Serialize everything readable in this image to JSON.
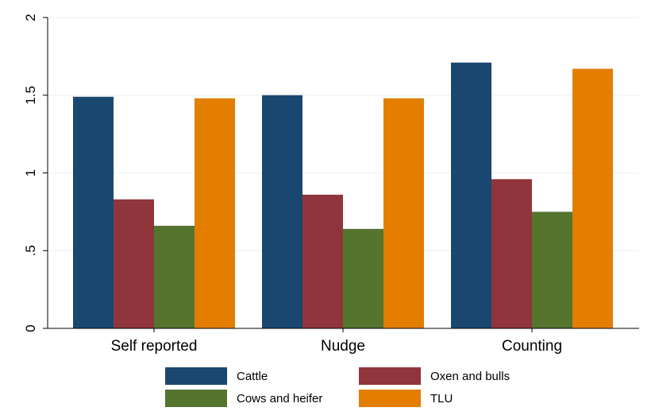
{
  "chart_data": {
    "type": "bar",
    "title": "",
    "xlabel": "",
    "ylabel": "",
    "categories": [
      "Self reported",
      "Nudge",
      "Counting"
    ],
    "series": [
      {
        "name": "Cattle",
        "color": "#1a476f",
        "values": [
          1.49,
          1.5,
          1.71
        ]
      },
      {
        "name": "Oxen and bulls",
        "color": "#90353b",
        "values": [
          0.83,
          0.86,
          0.96
        ]
      },
      {
        "name": "Cows and heifer",
        "color": "#55752f",
        "values": [
          0.66,
          0.64,
          0.75
        ]
      },
      {
        "name": "TLU",
        "color": "#e37e00",
        "values": [
          1.48,
          1.48,
          1.67
        ]
      }
    ],
    "ylim": [
      0,
      2
    ],
    "yticks": [
      {
        "value": 0,
        "label": "0"
      },
      {
        "value": 0.5,
        "label": ".5"
      },
      {
        "value": 1,
        "label": "1"
      },
      {
        "value": 1.5,
        "label": "1.5"
      },
      {
        "value": 2,
        "label": "2"
      }
    ],
    "grid": true,
    "legend_position": "bottom"
  }
}
